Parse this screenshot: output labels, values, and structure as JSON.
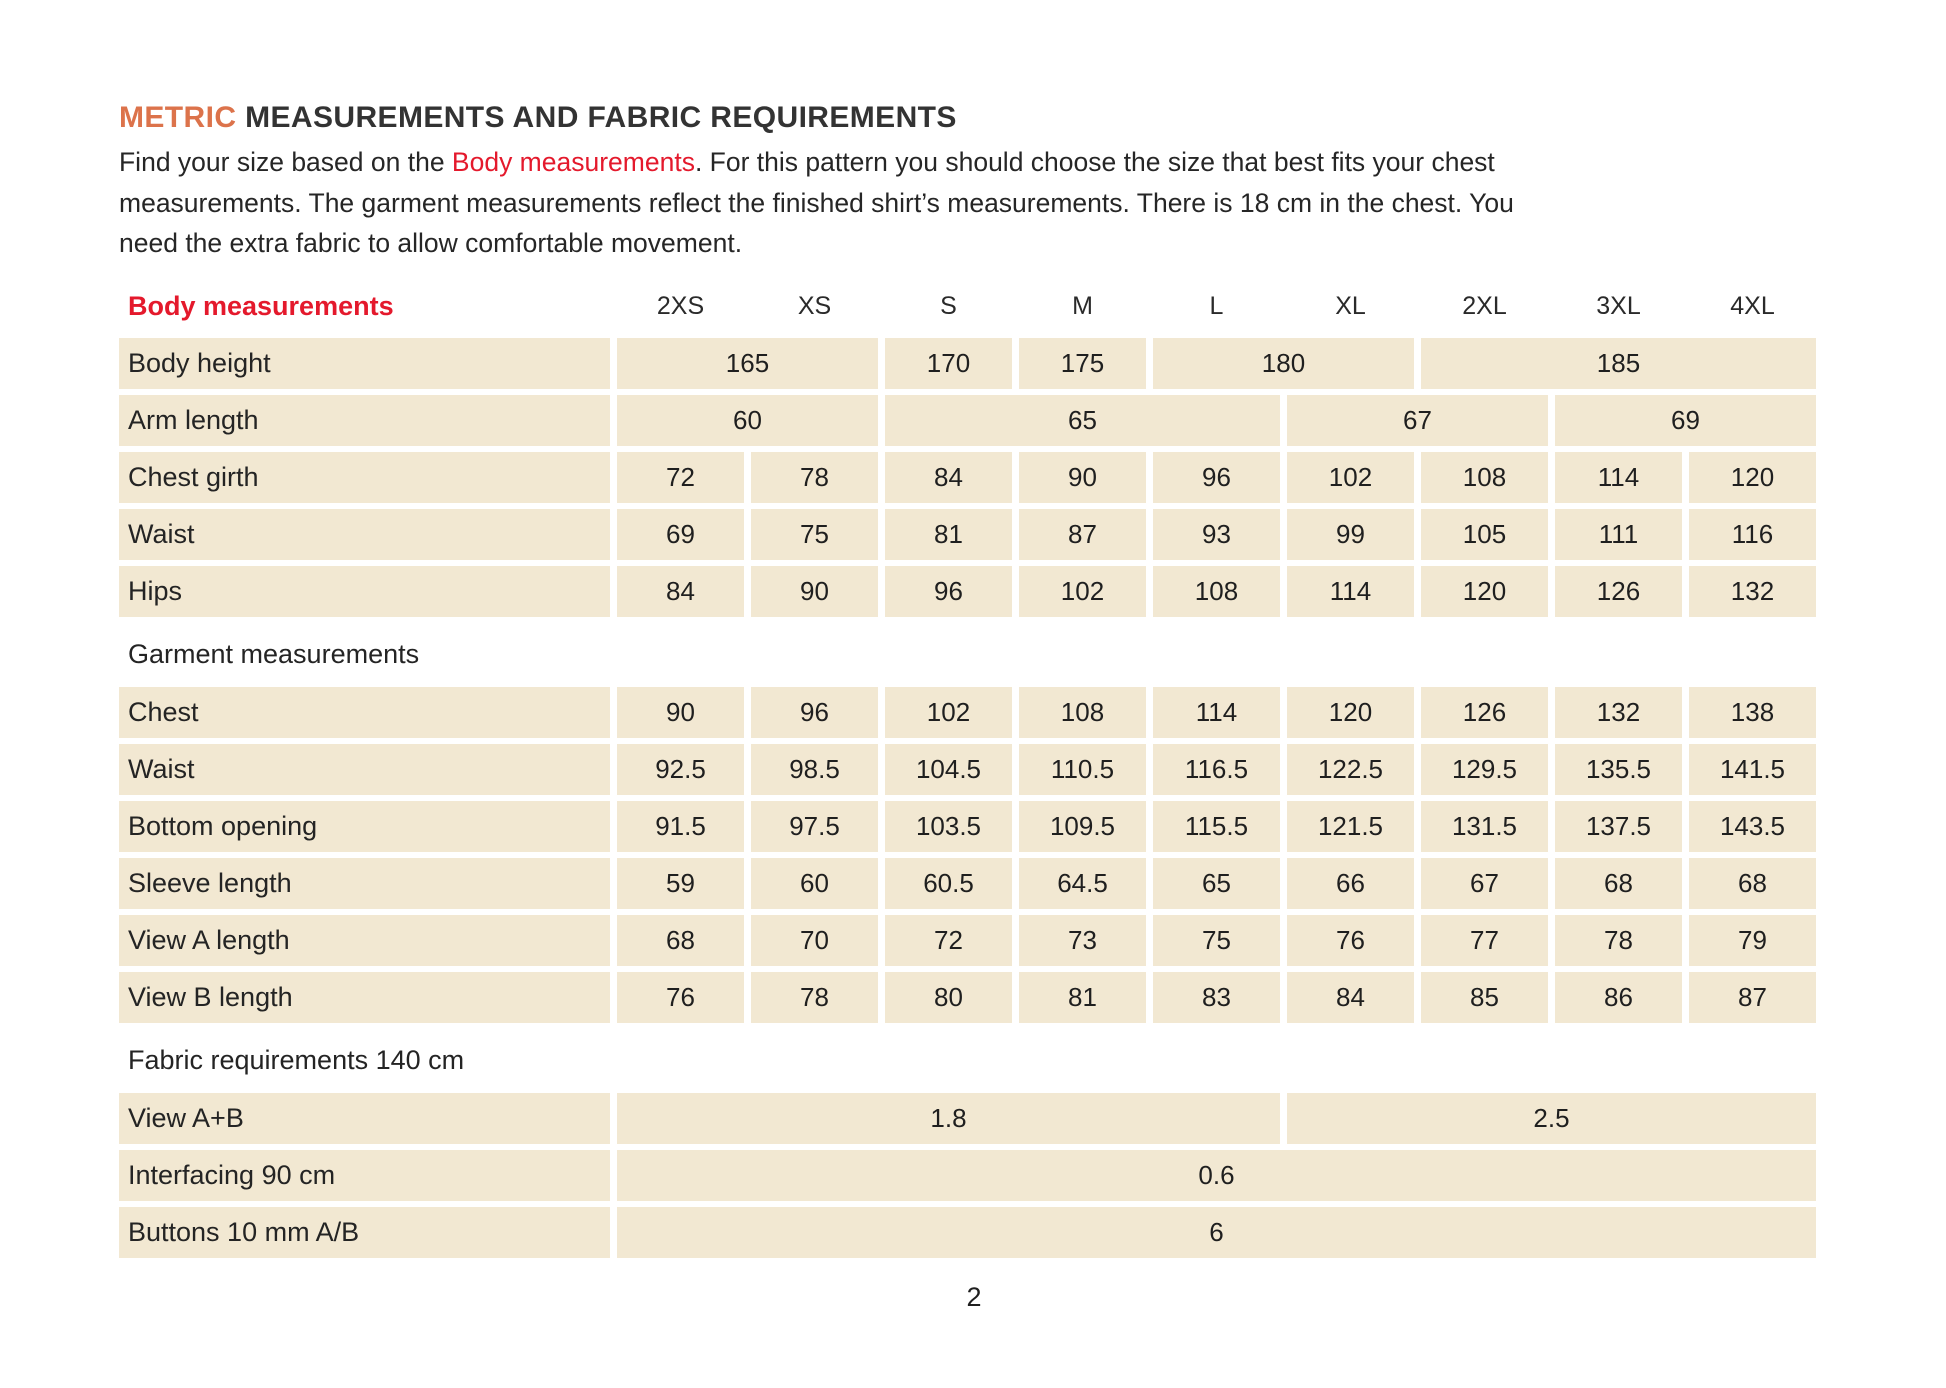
{
  "colors": {
    "cell_bg": "#F2E8D2",
    "red": "#E4192C",
    "orange": "#DC734B"
  },
  "page": {
    "title": {
      "highlight": "METRIC",
      "rest": " MEASUREMENTS AND FABRIC REQUIREMENTS"
    },
    "intro": {
      "line1_before": "Find your size based on the ",
      "line1_red": "Body measurements",
      "line1_after": ". For this pattern you should choose the size that best fits your chest",
      "line2": "measurements. The garment measurements reflect the finished shirt’s measurements. There is 18 cm in the chest. You",
      "line3": "need the extra fabric to allow comfortable movement."
    },
    "page_number": "2"
  },
  "table": {
    "header": {
      "label": "Body measurements",
      "sizes": [
        "2XS",
        "XS",
        "S",
        "M",
        "L",
        "XL",
        "2XL",
        "3XL",
        "4XL"
      ]
    },
    "sections": [
      {
        "title": null,
        "rows": [
          {
            "label": "Body height",
            "cells": [
              {
                "span": 2,
                "v": "165"
              },
              {
                "span": 1,
                "v": "170"
              },
              {
                "span": 1,
                "v": "175"
              },
              {
                "span": 2,
                "v": "180"
              },
              {
                "span": 3,
                "v": "185"
              }
            ]
          },
          {
            "label": "Arm length",
            "cells": [
              {
                "span": 2,
                "v": "60"
              },
              {
                "span": 3,
                "v": "65"
              },
              {
                "span": 2,
                "v": "67"
              },
              {
                "span": 2,
                "v": "69"
              }
            ]
          },
          {
            "label": "Chest girth",
            "cells": [
              {
                "span": 1,
                "v": "72"
              },
              {
                "span": 1,
                "v": "78"
              },
              {
                "span": 1,
                "v": "84"
              },
              {
                "span": 1,
                "v": "90"
              },
              {
                "span": 1,
                "v": "96"
              },
              {
                "span": 1,
                "v": "102"
              },
              {
                "span": 1,
                "v": "108"
              },
              {
                "span": 1,
                "v": "114"
              },
              {
                "span": 1,
                "v": "120"
              }
            ]
          },
          {
            "label": "Waist",
            "cells": [
              {
                "span": 1,
                "v": "69"
              },
              {
                "span": 1,
                "v": "75"
              },
              {
                "span": 1,
                "v": "81"
              },
              {
                "span": 1,
                "v": "87"
              },
              {
                "span": 1,
                "v": "93"
              },
              {
                "span": 1,
                "v": "99"
              },
              {
                "span": 1,
                "v": "105"
              },
              {
                "span": 1,
                "v": "111"
              },
              {
                "span": 1,
                "v": "116"
              }
            ]
          },
          {
            "label": "Hips",
            "cells": [
              {
                "span": 1,
                "v": "84"
              },
              {
                "span": 1,
                "v": "90"
              },
              {
                "span": 1,
                "v": "96"
              },
              {
                "span": 1,
                "v": "102"
              },
              {
                "span": 1,
                "v": "108"
              },
              {
                "span": 1,
                "v": "114"
              },
              {
                "span": 1,
                "v": "120"
              },
              {
                "span": 1,
                "v": "126"
              },
              {
                "span": 1,
                "v": "132"
              }
            ]
          }
        ]
      },
      {
        "title": "Garment measurements",
        "rows": [
          {
            "label": "Chest",
            "cells": [
              {
                "span": 1,
                "v": "90"
              },
              {
                "span": 1,
                "v": "96"
              },
              {
                "span": 1,
                "v": "102"
              },
              {
                "span": 1,
                "v": "108"
              },
              {
                "span": 1,
                "v": "114"
              },
              {
                "span": 1,
                "v": "120"
              },
              {
                "span": 1,
                "v": "126"
              },
              {
                "span": 1,
                "v": "132"
              },
              {
                "span": 1,
                "v": "138"
              }
            ]
          },
          {
            "label": "Waist",
            "cells": [
              {
                "span": 1,
                "v": "92.5"
              },
              {
                "span": 1,
                "v": "98.5"
              },
              {
                "span": 1,
                "v": "104.5"
              },
              {
                "span": 1,
                "v": "110.5"
              },
              {
                "span": 1,
                "v": "116.5"
              },
              {
                "span": 1,
                "v": "122.5"
              },
              {
                "span": 1,
                "v": "129.5"
              },
              {
                "span": 1,
                "v": "135.5"
              },
              {
                "span": 1,
                "v": "141.5"
              }
            ]
          },
          {
            "label": "Bottom opening",
            "cells": [
              {
                "span": 1,
                "v": "91.5"
              },
              {
                "span": 1,
                "v": "97.5"
              },
              {
                "span": 1,
                "v": "103.5"
              },
              {
                "span": 1,
                "v": "109.5"
              },
              {
                "span": 1,
                "v": "115.5"
              },
              {
                "span": 1,
                "v": "121.5"
              },
              {
                "span": 1,
                "v": "131.5"
              },
              {
                "span": 1,
                "v": "137.5"
              },
              {
                "span": 1,
                "v": "143.5"
              }
            ]
          },
          {
            "label": "Sleeve length",
            "cells": [
              {
                "span": 1,
                "v": "59"
              },
              {
                "span": 1,
                "v": "60"
              },
              {
                "span": 1,
                "v": "60.5"
              },
              {
                "span": 1,
                "v": "64.5"
              },
              {
                "span": 1,
                "v": "65"
              },
              {
                "span": 1,
                "v": "66"
              },
              {
                "span": 1,
                "v": "67"
              },
              {
                "span": 1,
                "v": "68"
              },
              {
                "span": 1,
                "v": "68"
              }
            ]
          },
          {
            "label": "View A length",
            "cells": [
              {
                "span": 1,
                "v": "68"
              },
              {
                "span": 1,
                "v": "70"
              },
              {
                "span": 1,
                "v": "72"
              },
              {
                "span": 1,
                "v": "73"
              },
              {
                "span": 1,
                "v": "75"
              },
              {
                "span": 1,
                "v": "76"
              },
              {
                "span": 1,
                "v": "77"
              },
              {
                "span": 1,
                "v": "78"
              },
              {
                "span": 1,
                "v": "79"
              }
            ]
          },
          {
            "label": "View B length",
            "cells": [
              {
                "span": 1,
                "v": "76"
              },
              {
                "span": 1,
                "v": "78"
              },
              {
                "span": 1,
                "v": "80"
              },
              {
                "span": 1,
                "v": "81"
              },
              {
                "span": 1,
                "v": "83"
              },
              {
                "span": 1,
                "v": "84"
              },
              {
                "span": 1,
                "v": "85"
              },
              {
                "span": 1,
                "v": "86"
              },
              {
                "span": 1,
                "v": "87"
              }
            ]
          }
        ]
      },
      {
        "title": "Fabric requirements 140 cm",
        "rows": [
          {
            "label": "View A+B",
            "cells": [
              {
                "span": 5,
                "v": "1.8"
              },
              {
                "span": 4,
                "v": "2.5"
              }
            ]
          },
          {
            "label": "Interfacing 90 cm",
            "cells": [
              {
                "span": 9,
                "v": "0.6"
              }
            ]
          },
          {
            "label": "Buttons 10 mm A/B",
            "cells": [
              {
                "span": 9,
                "v": "6"
              }
            ]
          }
        ]
      }
    ]
  }
}
